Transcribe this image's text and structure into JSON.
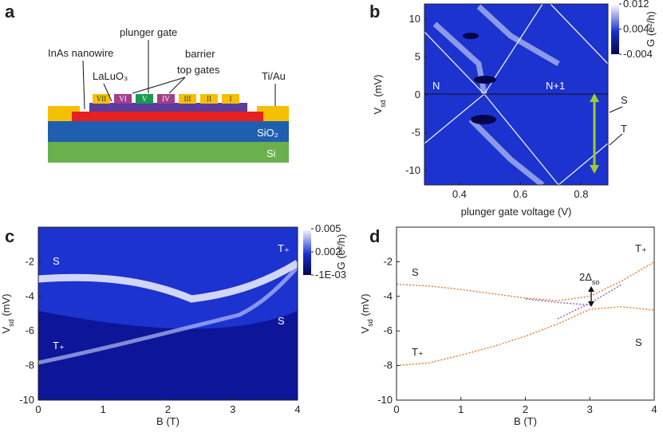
{
  "diagram": {
    "panel_label": "a",
    "labels": {
      "plunger": "plunger gate",
      "nanowire": "InAs nanowire",
      "barrier": "barrier",
      "top_gates": "top gates",
      "oxide": "LaLuO₃",
      "contacts": "Ti/Au",
      "sio2": "SiO₂",
      "si": "Si"
    },
    "gates": [
      "VII",
      "VI",
      "V",
      "IV",
      "III",
      "II",
      "I"
    ]
  },
  "chart_data": [
    {
      "type": "heatmap",
      "panel_label": "b",
      "xlabel": "plunger gate voltage (V)",
      "ylabel": {
        "main": "V",
        "sub": "sd",
        "unit": " (mV)"
      },
      "xlim": [
        0.285,
        0.888
      ],
      "xticks": [
        0.4,
        0.6,
        0.8
      ],
      "ylim": [
        -11.9,
        12
      ],
      "yticks": [
        -10,
        -5,
        0,
        5,
        10
      ],
      "colorbar": {
        "label": "G (e²/h)",
        "clim": [
          -0.004,
          0.012
        ],
        "ticks": [
          0.012,
          0.004,
          -0.004
        ]
      },
      "annotations": [
        "N",
        "N+1",
        "S",
        "T"
      ]
    },
    {
      "type": "heatmap",
      "panel_label": "c",
      "xlabel": "B (T)",
      "ylabel": {
        "main": "V",
        "sub": "sd",
        "unit": " (mV)"
      },
      "xlim": [
        0,
        4
      ],
      "xticks": [
        0,
        1,
        2,
        3,
        4
      ],
      "ylim": [
        -10,
        0
      ],
      "yticks": [
        -10,
        -8,
        -6,
        -4,
        -2
      ],
      "colorbar": {
        "label": "G (e²/h)",
        "clim": [
          -0.001,
          0.005
        ],
        "ticks": [
          0.005,
          0.002,
          {
            "value": -0.001,
            "label": "-1E-03"
          }
        ]
      },
      "annotations": [
        "S",
        "T₊",
        "S",
        "T₊"
      ]
    },
    {
      "type": "line",
      "panel_label": "d",
      "xlabel": "B (T)",
      "ylabel": {
        "main": "V",
        "sub": "sd",
        "unit": " (mV)"
      },
      "xlim": [
        0,
        4
      ],
      "xticks": [
        0,
        1,
        2,
        3,
        4
      ],
      "ylim": [
        -10,
        0
      ],
      "yticks": [
        -10,
        -8,
        -6,
        -4,
        -2
      ],
      "x": [
        0,
        0.5,
        1,
        1.5,
        2,
        2.5,
        3,
        3.5,
        4
      ],
      "series": [
        {
          "color": "#f07828",
          "values": [
            -3.3,
            -3.4,
            -3.6,
            -3.85,
            -4.1,
            -4.25,
            -4.0,
            -3.1,
            -2.0
          ]
        },
        {
          "color": "#f07828",
          "values": [
            -8.0,
            -7.85,
            -7.4,
            -6.9,
            -6.3,
            -5.6,
            -4.75,
            -4.6,
            -4.8
          ]
        },
        {
          "color": "#8a5cc8",
          "values": [
            null,
            null,
            null,
            null,
            -4.15,
            -4.35,
            -4.5,
            null,
            null
          ]
        },
        {
          "color": "#8a5cc8",
          "values": [
            null,
            null,
            null,
            null,
            null,
            -5.3,
            -4.4,
            -3.3,
            null
          ]
        }
      ],
      "annotations": [
        "S",
        "T₊",
        {
          "main": "2Δ",
          "sub": "so"
        },
        "T₊",
        "S"
      ]
    }
  ]
}
